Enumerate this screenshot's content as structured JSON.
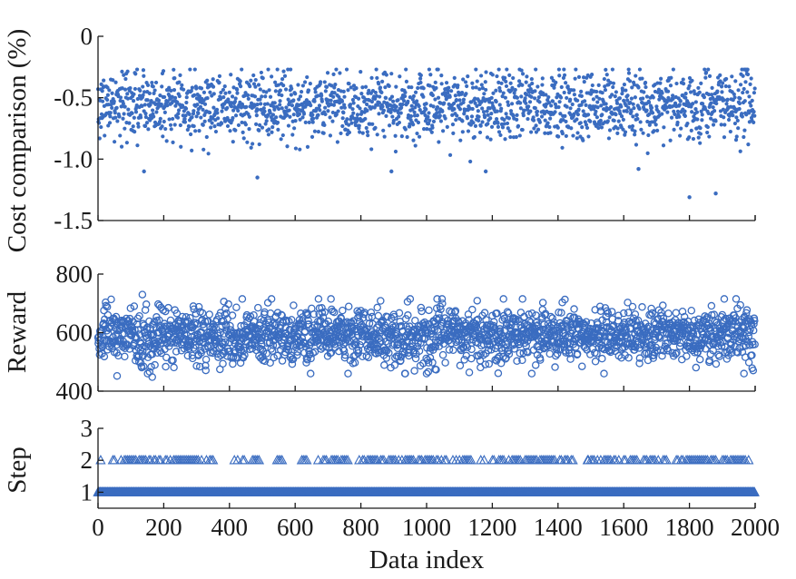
{
  "chart_data": {
    "type": "scatter",
    "layout": "three vertically stacked panels sharing the x axis",
    "xlabel": "Data index",
    "xlim": [
      0,
      2000
    ],
    "xticks": [
      0,
      200,
      400,
      600,
      800,
      1000,
      1200,
      1400,
      1600,
      1800,
      2000
    ],
    "marker_color": "#3a6cc0",
    "panels": [
      {
        "name": "cost",
        "ylabel": "Cost comparison (%)",
        "ylim": [
          -1.5,
          0
        ],
        "yticks": [
          "0",
          "-0.5",
          "-1.0",
          "-1.5"
        ],
        "marker": "filled-dot",
        "summary": {
          "count": 2000,
          "typical_range": [
            -0.95,
            -0.35
          ],
          "center": -0.56,
          "min": -1.31,
          "max": -0.27
        },
        "outliers": [
          {
            "x": 1800,
            "y": -1.31
          },
          {
            "x": 1880,
            "y": -1.28
          },
          {
            "x": 485,
            "y": -1.15
          },
          {
            "x": 893,
            "y": -1.1
          },
          {
            "x": 140,
            "y": -1.1
          },
          {
            "x": 1180,
            "y": -1.1
          },
          {
            "x": 1645,
            "y": -1.08
          }
        ]
      },
      {
        "name": "reward",
        "ylabel": "Reward",
        "ylim": [
          400,
          800
        ],
        "yticks": [
          "400",
          "600",
          "800"
        ],
        "marker": "open-circle",
        "summary": {
          "count": 2000,
          "typical_range": [
            470,
            710
          ],
          "center": 590,
          "min": 448,
          "max": 730
        },
        "notable": [
          {
            "x": 135,
            "y": 730
          },
          {
            "x": 58,
            "y": 452
          },
          {
            "x": 165,
            "y": 448
          }
        ]
      },
      {
        "name": "step",
        "ylabel": "Step",
        "ylim": [
          0.5,
          3
        ],
        "yticks": [
          "1",
          "2",
          "3"
        ],
        "marker": "triangle",
        "summary": {
          "count": 2000,
          "values_present": [
            1,
            2
          ],
          "share_step_2": 0.12
        },
        "step2_clusters": [
          [
            45,
            350
          ],
          [
            415,
            460
          ],
          [
            470,
            490
          ],
          [
            545,
            560
          ],
          [
            610,
            640
          ],
          [
            670,
            760
          ],
          [
            790,
            960
          ],
          [
            970,
            1060
          ],
          [
            1080,
            1180
          ],
          [
            1200,
            1450
          ],
          [
            1490,
            1640
          ],
          [
            1660,
            1730
          ],
          [
            1755,
            1780
          ],
          [
            1790,
            1880
          ],
          [
            1900,
            1985
          ]
        ]
      }
    ]
  }
}
